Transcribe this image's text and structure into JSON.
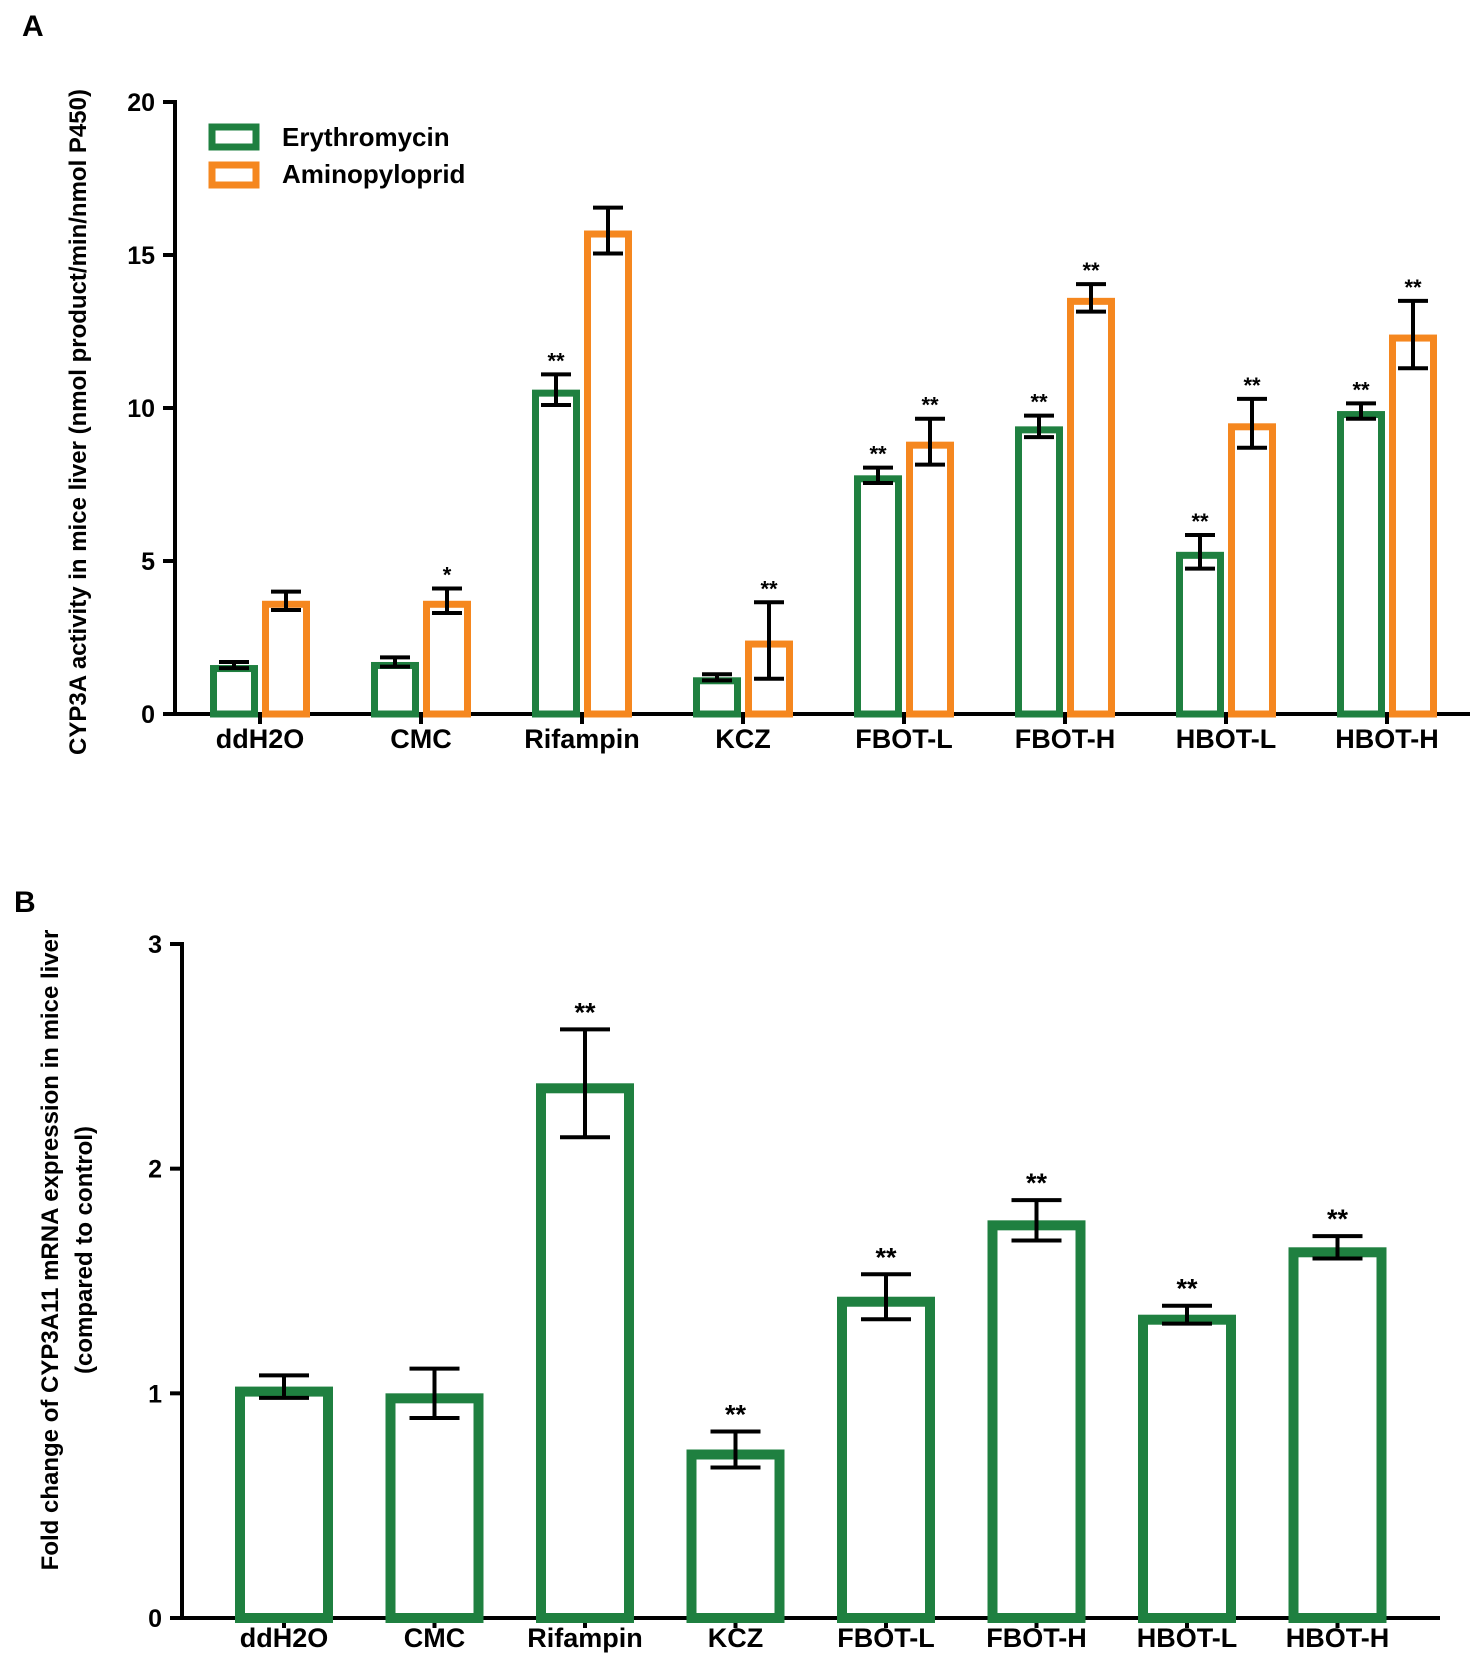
{
  "colors": {
    "erythromycin": "#1f8040",
    "aminopyloprid": "#f5871f",
    "axis": "#000000",
    "background": "#ffffff"
  },
  "chart_data": [
    {
      "panel": "A",
      "type": "bar",
      "title": "",
      "xlabel": "",
      "ylabel": "CYP3A activity in mice liver (nmol product/min/nmol P450)",
      "ylim": [
        0,
        20
      ],
      "yticks": [
        "0",
        "5",
        "10",
        "15",
        "20"
      ],
      "legend": "top-left",
      "grid": false,
      "categories": [
        "ddH2O",
        "CMC",
        "Rifampin",
        "KCZ",
        "FBOT-L",
        "FBOT-H",
        "HBOT-L",
        "HBOT-H"
      ],
      "series": [
        {
          "name": "Erythromycin",
          "color_key": "erythromycin",
          "values": [
            1.6,
            1.7,
            10.6,
            1.2,
            7.8,
            9.4,
            5.3,
            9.9
          ],
          "errors": [
            0.1,
            0.15,
            0.5,
            0.1,
            0.25,
            0.35,
            0.55,
            0.25
          ],
          "significance": [
            "",
            "",
            "**",
            "",
            "**",
            "**",
            "**",
            "**"
          ]
        },
        {
          "name": "Aminopyloprid",
          "color_key": "aminopyloprid",
          "values": [
            3.7,
            3.7,
            15.8,
            2.4,
            8.9,
            13.6,
            9.5,
            12.4
          ],
          "errors": [
            0.3,
            0.4,
            0.75,
            1.25,
            0.75,
            0.45,
            0.8,
            1.1
          ],
          "significance": [
            "",
            "*",
            "",
            "**",
            "**",
            "**",
            "**",
            "**"
          ]
        }
      ]
    },
    {
      "panel": "B",
      "type": "bar",
      "title": "",
      "xlabel": "",
      "ylabel": "Fold change of CYP3A11 mRNA expression in mice liver",
      "ylabel_sub": "(compared to control)",
      "ylim": [
        0,
        3
      ],
      "yticks": [
        "0",
        "1",
        "2",
        "3"
      ],
      "grid": false,
      "categories": [
        "ddH2O",
        "CMC",
        "Rifampin",
        "KCZ",
        "FBOT-L",
        "FBOT-H",
        "HBOT-L",
        "HBOT-H"
      ],
      "series": [
        {
          "name": "CYP3A11 mRNA",
          "color_key": "erythromycin",
          "values": [
            1.03,
            1.0,
            2.38,
            0.75,
            1.43,
            1.77,
            1.35,
            1.65
          ],
          "errors": [
            0.05,
            0.11,
            0.24,
            0.08,
            0.1,
            0.09,
            0.04,
            0.05
          ],
          "significance": [
            "",
            "",
            "**",
            "**",
            "**",
            "**",
            "**",
            "**"
          ]
        }
      ]
    }
  ]
}
